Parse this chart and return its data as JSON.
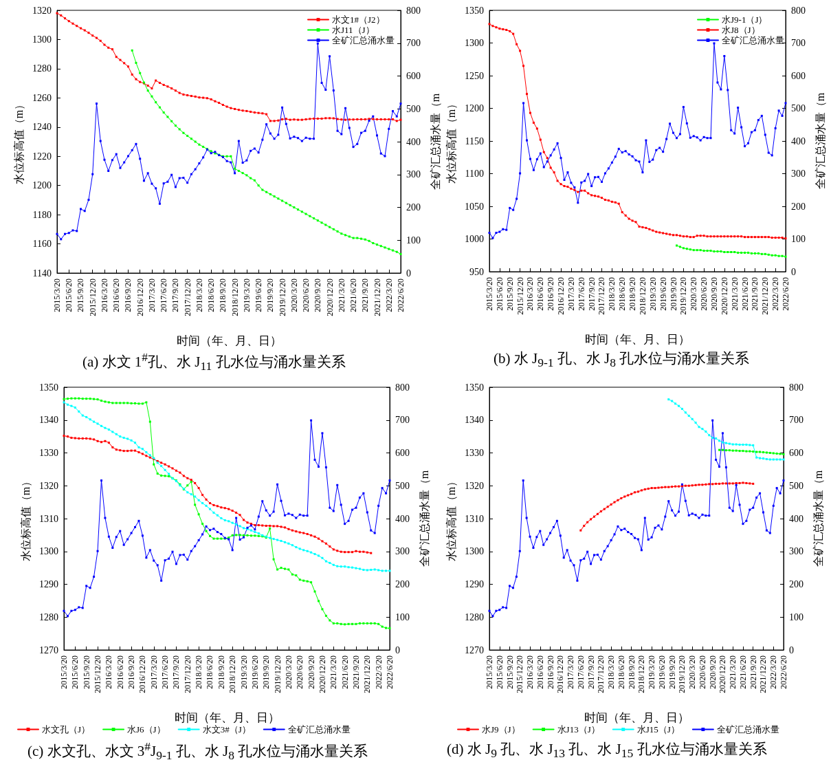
{
  "chart_data": [
    {
      "type": "line",
      "title": "(a) 水文 1$^{#}$孔、水 J$_{11}$ 孔水位与涌水量关系",
      "xlabel": "时间（年、月、日）",
      "ylabel": "水位标高值（m）",
      "y2label": "全矿汇总涌水量（m",
      "ylim": [
        1140,
        1320
      ],
      "yticks": [
        1140,
        1160,
        1180,
        1200,
        1220,
        1240,
        1260,
        1280,
        1300,
        1320
      ],
      "y2lim": [
        0,
        800
      ],
      "y2ticks": [
        0,
        100,
        200,
        300,
        400,
        500,
        600,
        700,
        800
      ],
      "legend": "top right",
      "marker": "square",
      "line_style": "solid",
      "categories": [
        "2015/3/20",
        null,
        null,
        "2015/6/20",
        null,
        null,
        "2015/9/20",
        null,
        null,
        "2015/12/20",
        null,
        null,
        "2016/3/20",
        null,
        null,
        "2016/6/20",
        null,
        null,
        "2016/9/20",
        null,
        null,
        "2016/12/20",
        null,
        null,
        "2017/3/20",
        null,
        null,
        "2017/6/20",
        null,
        null,
        "2017/9/20",
        null,
        null,
        "2017/12/20",
        null,
        null,
        "2018/3/20",
        null,
        null,
        "2018/6/20",
        null,
        null,
        "2018/9/20",
        null,
        null,
        "2018/12/20",
        null,
        null,
        "2019/3/20",
        null,
        null,
        "2019/6/20",
        null,
        null,
        "2019/9/20",
        null,
        null,
        "2019/12/20",
        null,
        null,
        "2020/3/20",
        null,
        null,
        "2020/6/20",
        null,
        null,
        "2020/9/20",
        null,
        null,
        "2020/12/20",
        null,
        null,
        "2021/3/20",
        null,
        null,
        "2021/6/20",
        null,
        null,
        "2021/9/20",
        null,
        null,
        "2021/12/20",
        null,
        null,
        "2022/3/20",
        null,
        null,
        "2022/6/20"
      ],
      "series": [
        {
          "name": "水文1#（J2）",
          "color": "#ff0000",
          "values": [
            1318,
            1316.5,
            1314.5,
            1312.6,
            1310.9,
            1309.3,
            1307.7,
            1306.3,
            1304.6,
            1302.7,
            1301.1,
            1299.1,
            1296.4,
            1294.4,
            1293.3,
            1288.1,
            1286,
            1283.8,
            1281.5,
            1276,
            1272.8,
            1270.9,
            1270,
            1268.4,
            1266.5,
            1271.9,
            1270.3,
            1268.9,
            1267.8,
            1266.5,
            1265,
            1263.4,
            1262.3,
            1261.8,
            1261.3,
            1260.9,
            1260.3,
            1260.1,
            1259.8,
            1259,
            1257.7,
            1256.6,
            1255.2,
            1254,
            1253,
            1252.4,
            1251.8,
            1251.3,
            1251,
            1250.5,
            1250,
            1249.7,
            1249.4,
            1248.8,
            1244.2,
            1244.2,
            1244.5,
            1245.3,
            1245.6,
            1245,
            1245.2,
            1245,
            1245,
            1245.3,
            1245.6,
            1245.8,
            1245.8,
            1245.8,
            1246.1,
            1246.1,
            1246,
            1245.5,
            1245.2,
            1245,
            1245.2,
            1245.2,
            1245.3,
            1245.3,
            1245.3,
            1245.6,
            1245.5,
            1245.3,
            1245.3,
            1245.3,
            1245.3,
            1245.3,
            1244.2,
            1245
          ]
        },
        {
          "name": "水J11（J）",
          "color": "#00ff00",
          "values": [
            null,
            null,
            null,
            null,
            null,
            null,
            null,
            null,
            null,
            null,
            null,
            null,
            null,
            null,
            null,
            null,
            null,
            null,
            null,
            1292.5,
            1284,
            1277,
            1270.5,
            1265,
            1261,
            1257,
            1253.5,
            1250,
            1247,
            1244,
            1241,
            1238.5,
            1236,
            1234,
            1232,
            1230,
            1228,
            1226.5,
            1225,
            1223.5,
            1222,
            1221,
            1220,
            1220,
            1220,
            1211.5,
            1210,
            1208.5,
            1207,
            1205,
            1203.5,
            1200,
            1197,
            1195.5,
            1194,
            1192.5,
            1191,
            1189.5,
            1188,
            1186.5,
            1185,
            1183.5,
            1182,
            1180.5,
            1179,
            1177.5,
            1176,
            1174.5,
            1173,
            1171.5,
            1170,
            1168.5,
            1167,
            1166,
            1165,
            1164,
            1164,
            1163.5,
            1163,
            1162,
            1160.5,
            1159.5,
            1158.5,
            1157.5,
            1156.5,
            1155.5,
            1154.5,
            1153
          ]
        },
        {
          "name": "全矿汇总涌水量",
          "color": "#0000ff",
          "axis": "y2",
          "values": [
            119,
            103,
            119,
            122,
            130,
            128,
            195,
            189,
            223,
            301,
            516,
            402,
            345,
            311,
            344,
            362,
            320,
            337,
            356,
            374,
            393,
            348,
            281,
            304,
            272,
            258,
            211,
            273,
            278,
            299,
            262,
            289,
            290,
            275,
            301,
            316,
            334,
            352,
            376,
            365,
            369,
            359,
            353,
            341,
            337,
            304,
            402,
            336,
            343,
            372,
            379,
            367,
            406,
            453,
            425,
            409,
            421,
            504,
            454,
            410,
            415,
            411,
            402,
            412,
            409,
            409,
            699,
            579,
            558,
            660,
            556,
            433,
            423,
            502,
            442,
            384,
            393,
            427,
            433,
            464,
            477,
            419,
            364,
            356,
            439,
            493,
            477,
            516
          ]
        }
      ]
    },
    {
      "type": "line",
      "title": "(b) 水 J$_{9-1}$ 孔、水 J$_{8}$ 孔水位与涌水量关系",
      "xlabel": "时间（年、月、日）",
      "ylabel": "水位标高值（m）",
      "y2label": "全矿汇总涌水量（m",
      "ylim": [
        950,
        1350
      ],
      "yticks": [
        950,
        1000,
        1050,
        1100,
        1150,
        1200,
        1250,
        1300,
        1350
      ],
      "y2lim": [
        0,
        800
      ],
      "y2ticks": [
        0,
        100,
        200,
        300,
        400,
        500,
        600,
        700,
        800
      ],
      "legend": "top right",
      "marker": "square",
      "line_style": "solid",
      "categories": [
        "2015/3/20",
        null,
        null,
        "2015/6/20",
        null,
        null,
        "2015/9/20",
        null,
        null,
        "2015/12/20",
        null,
        null,
        "2016/3/20",
        null,
        null,
        "2016/6/20",
        null,
        null,
        "2016/9/20",
        null,
        null,
        "2016/12/20",
        null,
        null,
        "2017/3/20",
        null,
        null,
        "2017/6/20",
        null,
        null,
        "2017/9/20",
        null,
        null,
        "2017/12/20",
        null,
        null,
        "2018/3/20",
        null,
        null,
        "2018/6/20",
        null,
        null,
        "2018/9/20",
        null,
        null,
        "2018/12/20",
        null,
        null,
        "2019/3/20",
        null,
        null,
        "2019/6/20",
        null,
        null,
        "2019/9/20",
        null,
        null,
        "2019/12/20",
        null,
        null,
        "2020/3/20",
        null,
        null,
        "2020/6/20",
        null,
        null,
        "2020/9/20",
        null,
        null,
        "2020/12/20",
        null,
        null,
        "2021/3/20",
        null,
        null,
        "2021/6/20",
        null,
        null,
        "2021/9/20",
        null,
        null,
        "2021/12/20",
        null,
        null,
        "2022/3/20",
        null,
        null,
        "2022/6/20"
      ],
      "series": [
        {
          "name": "水J9-1（J）",
          "color": "#00ff00",
          "values": [
            null,
            null,
            null,
            null,
            null,
            null,
            null,
            null,
            null,
            null,
            null,
            null,
            null,
            null,
            null,
            null,
            null,
            null,
            null,
            null,
            null,
            null,
            null,
            null,
            null,
            null,
            null,
            null,
            null,
            null,
            null,
            null,
            null,
            null,
            null,
            null,
            null,
            null,
            null,
            null,
            null,
            null,
            null,
            null,
            null,
            null,
            null,
            null,
            null,
            null,
            null,
            null,
            null,
            null,
            null,
            990,
            988,
            986,
            985,
            984,
            983,
            983,
            983,
            982,
            982,
            982,
            981,
            981,
            981,
            980,
            980,
            980,
            980,
            979,
            979,
            979,
            979,
            978,
            978,
            978,
            977,
            977,
            976,
            975,
            975,
            974,
            974,
            973
          ]
        },
        {
          "name": "水J8（J）",
          "color": "#ff0000",
          "values": [
            1329,
            1326,
            1324,
            1322,
            1321,
            1320,
            1318,
            1314,
            1298,
            1288,
            1265,
            1222,
            1193,
            1178,
            1169,
            1152,
            1133,
            1124,
            1109,
            1102,
            1089,
            1084,
            1081,
            1080,
            1077,
            1075,
            1072,
            1074,
            1074,
            1070,
            1067,
            1066,
            1065,
            1063,
            1060,
            1059,
            1057,
            1056,
            1054,
            1041,
            1036,
            1031,
            1028,
            1026,
            1019,
            1018,
            1017,
            1015,
            1013,
            1011,
            1010,
            1009,
            1008,
            1007,
            1006,
            1006,
            1005,
            1004,
            1004,
            1003,
            1003,
            1005,
            1005,
            1005,
            1004,
            1004,
            1004,
            1004,
            1004,
            1004,
            1004,
            1004,
            1004,
            1004,
            1004,
            1003,
            1003,
            1003,
            1003,
            1003,
            1003,
            1003,
            1003,
            1002,
            1002,
            1002,
            1002,
            1001
          ]
        },
        {
          "name": "全矿汇总涌水量",
          "color": "#0000ff",
          "axis": "y2",
          "values": [
            119,
            103,
            119,
            122,
            130,
            128,
            195,
            189,
            223,
            301,
            516,
            402,
            345,
            311,
            344,
            362,
            320,
            337,
            356,
            374,
            393,
            348,
            281,
            304,
            272,
            258,
            211,
            273,
            278,
            299,
            262,
            289,
            290,
            275,
            301,
            316,
            334,
            352,
            376,
            365,
            369,
            359,
            353,
            341,
            337,
            304,
            402,
            336,
            343,
            372,
            379,
            367,
            406,
            453,
            425,
            409,
            421,
            504,
            454,
            410,
            415,
            411,
            402,
            412,
            409,
            409,
            699,
            579,
            558,
            660,
            556,
            433,
            423,
            502,
            442,
            384,
            393,
            427,
            433,
            464,
            477,
            419,
            364,
            356,
            439,
            493,
            477,
            516
          ]
        }
      ]
    },
    {
      "type": "line",
      "title": "(c) 水文孔、水文 3$^{#}$J$_{9-1}$ 孔、水 J$_{8}$ 孔水位与涌水量关系",
      "xlabel": "时间（年、月、日）",
      "ylabel": "水位标高值（m）",
      "y2label": "全矿汇总涌水量（m",
      "ylim": [
        1270,
        1350
      ],
      "yticks": [
        1270,
        1280,
        1290,
        1300,
        1310,
        1320,
        1330,
        1340,
        1350
      ],
      "y2lim": [
        0,
        800
      ],
      "y2ticks": [
        0,
        100,
        200,
        300,
        400,
        500,
        600,
        700,
        800
      ],
      "legend": "bottom",
      "marker": "square",
      "line_style": "solid",
      "categories": [
        "2015/3/20",
        null,
        null,
        "2015/6/20",
        null,
        null,
        "2015/9/20",
        null,
        null,
        "2015/12/20",
        null,
        null,
        "2016/3/20",
        null,
        null,
        "2016/6/20",
        null,
        null,
        "2016/9/20",
        null,
        null,
        "2016/12/20",
        null,
        null,
        "2017/3/20",
        null,
        null,
        "2017/6/20",
        null,
        null,
        "2017/9/20",
        null,
        null,
        "2017/12/20",
        null,
        null,
        "2018/3/20",
        null,
        null,
        "2018/6/20",
        null,
        null,
        "2018/9/20",
        null,
        null,
        "2018/12/20",
        null,
        null,
        "2019/3/20",
        null,
        null,
        "2019/6/20",
        null,
        null,
        "2019/9/20",
        null,
        null,
        "2019/12/20",
        null,
        null,
        "2020/3/20",
        null,
        null,
        "2020/6/20",
        null,
        null,
        "2020/9/20",
        null,
        null,
        "2020/12/20",
        null,
        null,
        "2021/3/20",
        null,
        null,
        "2021/6/20",
        null,
        null,
        "2021/9/20",
        null,
        null,
        "2021/12/20",
        null,
        null,
        "2022/3/20",
        null,
        null,
        "2022/6/20"
      ],
      "series": [
        {
          "name": "水文孔（J）",
          "color": "#ff0000",
          "values": [
            1335.2,
            1335,
            1334.6,
            1334.5,
            1334.4,
            1334.4,
            1334.4,
            1334.3,
            1334.1,
            1333.6,
            1333.3,
            1333.6,
            1333.1,
            1331.7,
            1331,
            1330.8,
            1330.6,
            1330.6,
            1330.7,
            1330.7,
            1330.2,
            1329.7,
            1329.1,
            1328.6,
            1328.1,
            1327.5,
            1327,
            1326.5,
            1325.9,
            1325.3,
            1324.6,
            1324,
            1323,
            1322.3,
            1321.8,
            1320.8,
            1319.3,
            1317.2,
            1315.8,
            1314.7,
            1314.1,
            1313.8,
            1313.4,
            1313.2,
            1312.9,
            1312.4,
            1311.8,
            1311.1,
            1309.6,
            1308.8,
            1308.4,
            1308,
            1308,
            1307.9,
            1307.8,
            1307.8,
            1307.7,
            1307.7,
            1307.5,
            1307.3,
            1306.8,
            1306.4,
            1306.1,
            1305.8,
            1305.6,
            1305.3,
            1304.9,
            1304.5,
            1303.9,
            1303.1,
            1302.4,
            1301.5,
            1300.6,
            1300.2,
            1299.9,
            1299.8,
            1299.8,
            1299.8,
            1300.1,
            1299.9,
            1299.9,
            1299.7,
            1299.5,
            null,
            null,
            null,
            null,
            null
          ]
        },
        {
          "name": "水J6（J）",
          "color": "#00ff00",
          "values": [
            1346.4,
            1346.5,
            1346.6,
            1346.6,
            1346.6,
            1346.5,
            1346.5,
            1346.5,
            1346.4,
            1346.3,
            1345.9,
            1345.6,
            1345.4,
            1345.2,
            1345.2,
            1345.2,
            1345.2,
            1345.2,
            1345.1,
            1345.1,
            1345,
            1345,
            1345.4,
            1339.5,
            1326.5,
            1323.7,
            1323.1,
            1323,
            1322.9,
            1322.3,
            1321.6,
            1320.4,
            1318.9,
            1320.1,
            1321.2,
            1314.2,
            1311.3,
            1308.4,
            1306.2,
            1304.7,
            1303.9,
            1303.9,
            1303.9,
            1303.9,
            1304.2,
            1304.9,
            1305,
            1305,
            1304.9,
            1304.9,
            1304.8,
            1304.8,
            1304.7,
            1304.6,
            1304.2,
            1307,
            1297.6,
            1294.5,
            1295,
            1294.7,
            1294.5,
            1293,
            1292.7,
            1291.4,
            1291.1,
            1290.9,
            1290.6,
            1287.8,
            1284.9,
            1282.4,
            1280.4,
            1279,
            1278.1,
            1278.1,
            1277.9,
            1277.8,
            1277.9,
            1277.9,
            1277.9,
            1278.1,
            1278.1,
            1278.1,
            1278.1,
            1278.1,
            1277.9,
            1277.1,
            1276.7,
            1276.6
          ]
        },
        {
          "name": "水文3#（J）",
          "color": "#00ffff",
          "values": [
            1345.4,
            1344.7,
            1344.3,
            1343.8,
            1342.6,
            1341.4,
            1340.9,
            1340.2,
            1339.5,
            1338.9,
            1338.2,
            1337.6,
            1337.1,
            1336.4,
            1335.7,
            1335,
            1334.6,
            1334.3,
            1333.8,
            1333.1,
            1331.7,
            1331.2,
            1330.2,
            1329.3,
            1328.4,
            1327,
            1326,
            1324.8,
            1323.6,
            1322.2,
            1321.4,
            1320.1,
            1319.1,
            1318,
            1317.4,
            1316.7,
            1315.6,
            1314.7,
            1313.9,
            1312.9,
            1311.8,
            1311,
            1310.1,
            1309.5,
            1309.2,
            1308.7,
            1308.2,
            1307.7,
            1307.1,
            1306.8,
            1306.4,
            1305.9,
            1305.5,
            1304.9,
            1304.5,
            1304.1,
            1303.8,
            1303.5,
            1303.2,
            1302.8,
            1302.4,
            1301.9,
            1301.3,
            1300.8,
            1300.4,
            1300.1,
            1299.7,
            1299.2,
            1298.7,
            1298,
            1297,
            1296.5,
            1295.9,
            1295.5,
            1295.4,
            1295.4,
            1295.2,
            1295.1,
            1294.9,
            1294.7,
            1294.4,
            1294.3,
            1294.4,
            1294.5,
            1294.3,
            1294.1,
            1294.1,
            1294.1
          ]
        },
        {
          "name": "全矿汇总涌水量",
          "color": "#0000ff",
          "axis": "y2",
          "values": [
            119,
            103,
            119,
            122,
            130,
            128,
            195,
            189,
            223,
            301,
            516,
            402,
            345,
            311,
            344,
            362,
            320,
            337,
            356,
            374,
            393,
            348,
            281,
            304,
            272,
            258,
            211,
            273,
            278,
            299,
            262,
            289,
            290,
            275,
            301,
            316,
            334,
            352,
            376,
            365,
            369,
            359,
            353,
            341,
            337,
            304,
            402,
            336,
            343,
            372,
            379,
            367,
            406,
            453,
            425,
            409,
            421,
            504,
            454,
            410,
            415,
            411,
            402,
            412,
            409,
            409,
            699,
            579,
            558,
            660,
            556,
            433,
            423,
            502,
            442,
            384,
            393,
            427,
            433,
            464,
            477,
            419,
            364,
            356,
            439,
            493,
            477,
            516
          ]
        }
      ]
    },
    {
      "type": "line",
      "title": "(d) 水 J$_{9}$ 孔、水 J$_{13}$ 孔、水 J$_{15}$ 孔水位与涌水量关系",
      "xlabel": "时间（年、月、日）",
      "ylabel": "水位标高值（m）",
      "y2label": "全矿汇总涌水量（m",
      "ylim": [
        1270,
        1350
      ],
      "yticks": [
        1270,
        1280,
        1290,
        1300,
        1310,
        1320,
        1330,
        1340,
        1350
      ],
      "y2lim": [
        0,
        800
      ],
      "y2ticks": [
        0,
        100,
        200,
        300,
        400,
        500,
        600,
        700,
        800
      ],
      "legend": "bottom",
      "marker": "square",
      "line_style": "solid",
      "categories": [
        "2015/3/20",
        null,
        null,
        "2015/6/20",
        null,
        null,
        "2015/9/20",
        null,
        null,
        "2015/12/20",
        null,
        null,
        "2016/3/20",
        null,
        null,
        "2016/6/20",
        null,
        null,
        "2016/9/20",
        null,
        null,
        "2016/12/20",
        null,
        null,
        "2017/3/20",
        null,
        null,
        "2017/6/20",
        null,
        null,
        "2017/9/20",
        null,
        null,
        "2017/12/20",
        null,
        null,
        "2018/3/20",
        null,
        null,
        "2018/6/20",
        null,
        null,
        "2018/9/20",
        null,
        null,
        "2018/12/20",
        null,
        null,
        "2019/3/20",
        null,
        null,
        "2019/6/20",
        null,
        null,
        "2019/9/20",
        null,
        null,
        "2019/12/20",
        null,
        null,
        "2020/3/20",
        null,
        null,
        "2020/6/20",
        null,
        null,
        "2020/9/20",
        null,
        null,
        "2020/12/20",
        null,
        null,
        "2021/3/20",
        null,
        null,
        "2021/6/20",
        null,
        null,
        "2021/9/20",
        null,
        null,
        "2021/12/20",
        null,
        null,
        "2022/3/20",
        null,
        null,
        "2022/6/20"
      ],
      "series": [
        {
          "name": "水J9（J）",
          "color": "#ff0000",
          "values": [
            null,
            null,
            null,
            null,
            null,
            null,
            null,
            null,
            null,
            null,
            null,
            null,
            null,
            null,
            null,
            null,
            null,
            null,
            null,
            null,
            null,
            null,
            null,
            null,
            null,
            null,
            null,
            1306.4,
            1307.8,
            1308.9,
            1309.8,
            1310.6,
            1311.4,
            1312.2,
            1312.9,
            1313.6,
            1314.3,
            1315,
            1315.6,
            1316.2,
            1316.7,
            1317.1,
            1317.5,
            1318,
            1318.2,
            1318.6,
            1318.9,
            1319.1,
            1319.3,
            1319.3,
            1319.4,
            1319.5,
            1319.6,
            1319.6,
            1319.7,
            1319.8,
            1319.8,
            1319.9,
            1320,
            1320,
            1320.1,
            1320.2,
            1320.3,
            1320.3,
            1320.4,
            1320.5,
            1320.5,
            1320.6,
            1320.6,
            1320.7,
            1320.7,
            1320.7,
            1320.7,
            1320.8,
            1320.8,
            1320.9,
            1320.8,
            1320.7,
            1320.6,
            null,
            null,
            null,
            null,
            null,
            null,
            null,
            null,
            null
          ]
        },
        {
          "name": "水J13（J）",
          "color": "#00ff00",
          "values": [
            null,
            null,
            null,
            null,
            null,
            null,
            null,
            null,
            null,
            null,
            null,
            null,
            null,
            null,
            null,
            null,
            null,
            null,
            null,
            null,
            null,
            null,
            null,
            null,
            null,
            null,
            null,
            null,
            null,
            null,
            null,
            null,
            null,
            null,
            null,
            null,
            null,
            null,
            null,
            null,
            null,
            null,
            null,
            null,
            null,
            null,
            null,
            null,
            null,
            null,
            null,
            null,
            null,
            null,
            null,
            null,
            null,
            null,
            null,
            null,
            null,
            null,
            null,
            null,
            null,
            null,
            null,
            null,
            1330.9,
            1330.9,
            1330.8,
            1330.8,
            1330.7,
            1330.7,
            1330.6,
            1330.6,
            1330.5,
            1330.5,
            1330.4,
            1330.3,
            1330.3,
            1330.2,
            1330.1,
            1330,
            1329.9,
            1329.8,
            1329.7,
            1329.6
          ]
        },
        {
          "name": "水J15（J）",
          "color": "#00ffff",
          "values": [
            null,
            null,
            null,
            null,
            null,
            null,
            null,
            null,
            null,
            null,
            null,
            null,
            null,
            null,
            null,
            null,
            null,
            null,
            null,
            null,
            null,
            null,
            null,
            null,
            null,
            null,
            null,
            null,
            null,
            null,
            null,
            null,
            null,
            null,
            null,
            null,
            null,
            null,
            null,
            null,
            null,
            null,
            null,
            null,
            null,
            null,
            null,
            null,
            null,
            null,
            null,
            null,
            null,
            1346.3,
            1345.8,
            1345,
            1344.3,
            1343.4,
            1342.3,
            1341.3,
            1340.3,
            1339.2,
            1337.9,
            1337.3,
            1336.5,
            1335.4,
            1334.6,
            1334.4,
            1333.7,
            1333.2,
            1333,
            1332.8,
            1332.6,
            1332.6,
            1332.5,
            1332.5,
            1332.5,
            1332.4,
            1332.3,
            1328.6,
            1328.4,
            1328.3,
            1328.1,
            1328,
            1328,
            1328,
            1328,
            1328
          ]
        },
        {
          "name": "全矿汇总涌水量",
          "color": "#0000ff",
          "axis": "y2",
          "values": [
            119,
            103,
            119,
            122,
            130,
            128,
            195,
            189,
            223,
            301,
            516,
            402,
            345,
            311,
            344,
            362,
            320,
            337,
            356,
            374,
            393,
            348,
            281,
            304,
            272,
            258,
            211,
            273,
            278,
            299,
            262,
            289,
            290,
            275,
            301,
            316,
            334,
            352,
            376,
            365,
            369,
            359,
            353,
            341,
            337,
            304,
            402,
            336,
            343,
            372,
            379,
            367,
            406,
            453,
            425,
            409,
            421,
            504,
            454,
            410,
            415,
            411,
            402,
            412,
            409,
            409,
            699,
            579,
            558,
            660,
            556,
            433,
            423,
            502,
            442,
            384,
            393,
            427,
            433,
            464,
            477,
            419,
            364,
            356,
            439,
            493,
            477,
            516
          ]
        }
      ]
    }
  ]
}
